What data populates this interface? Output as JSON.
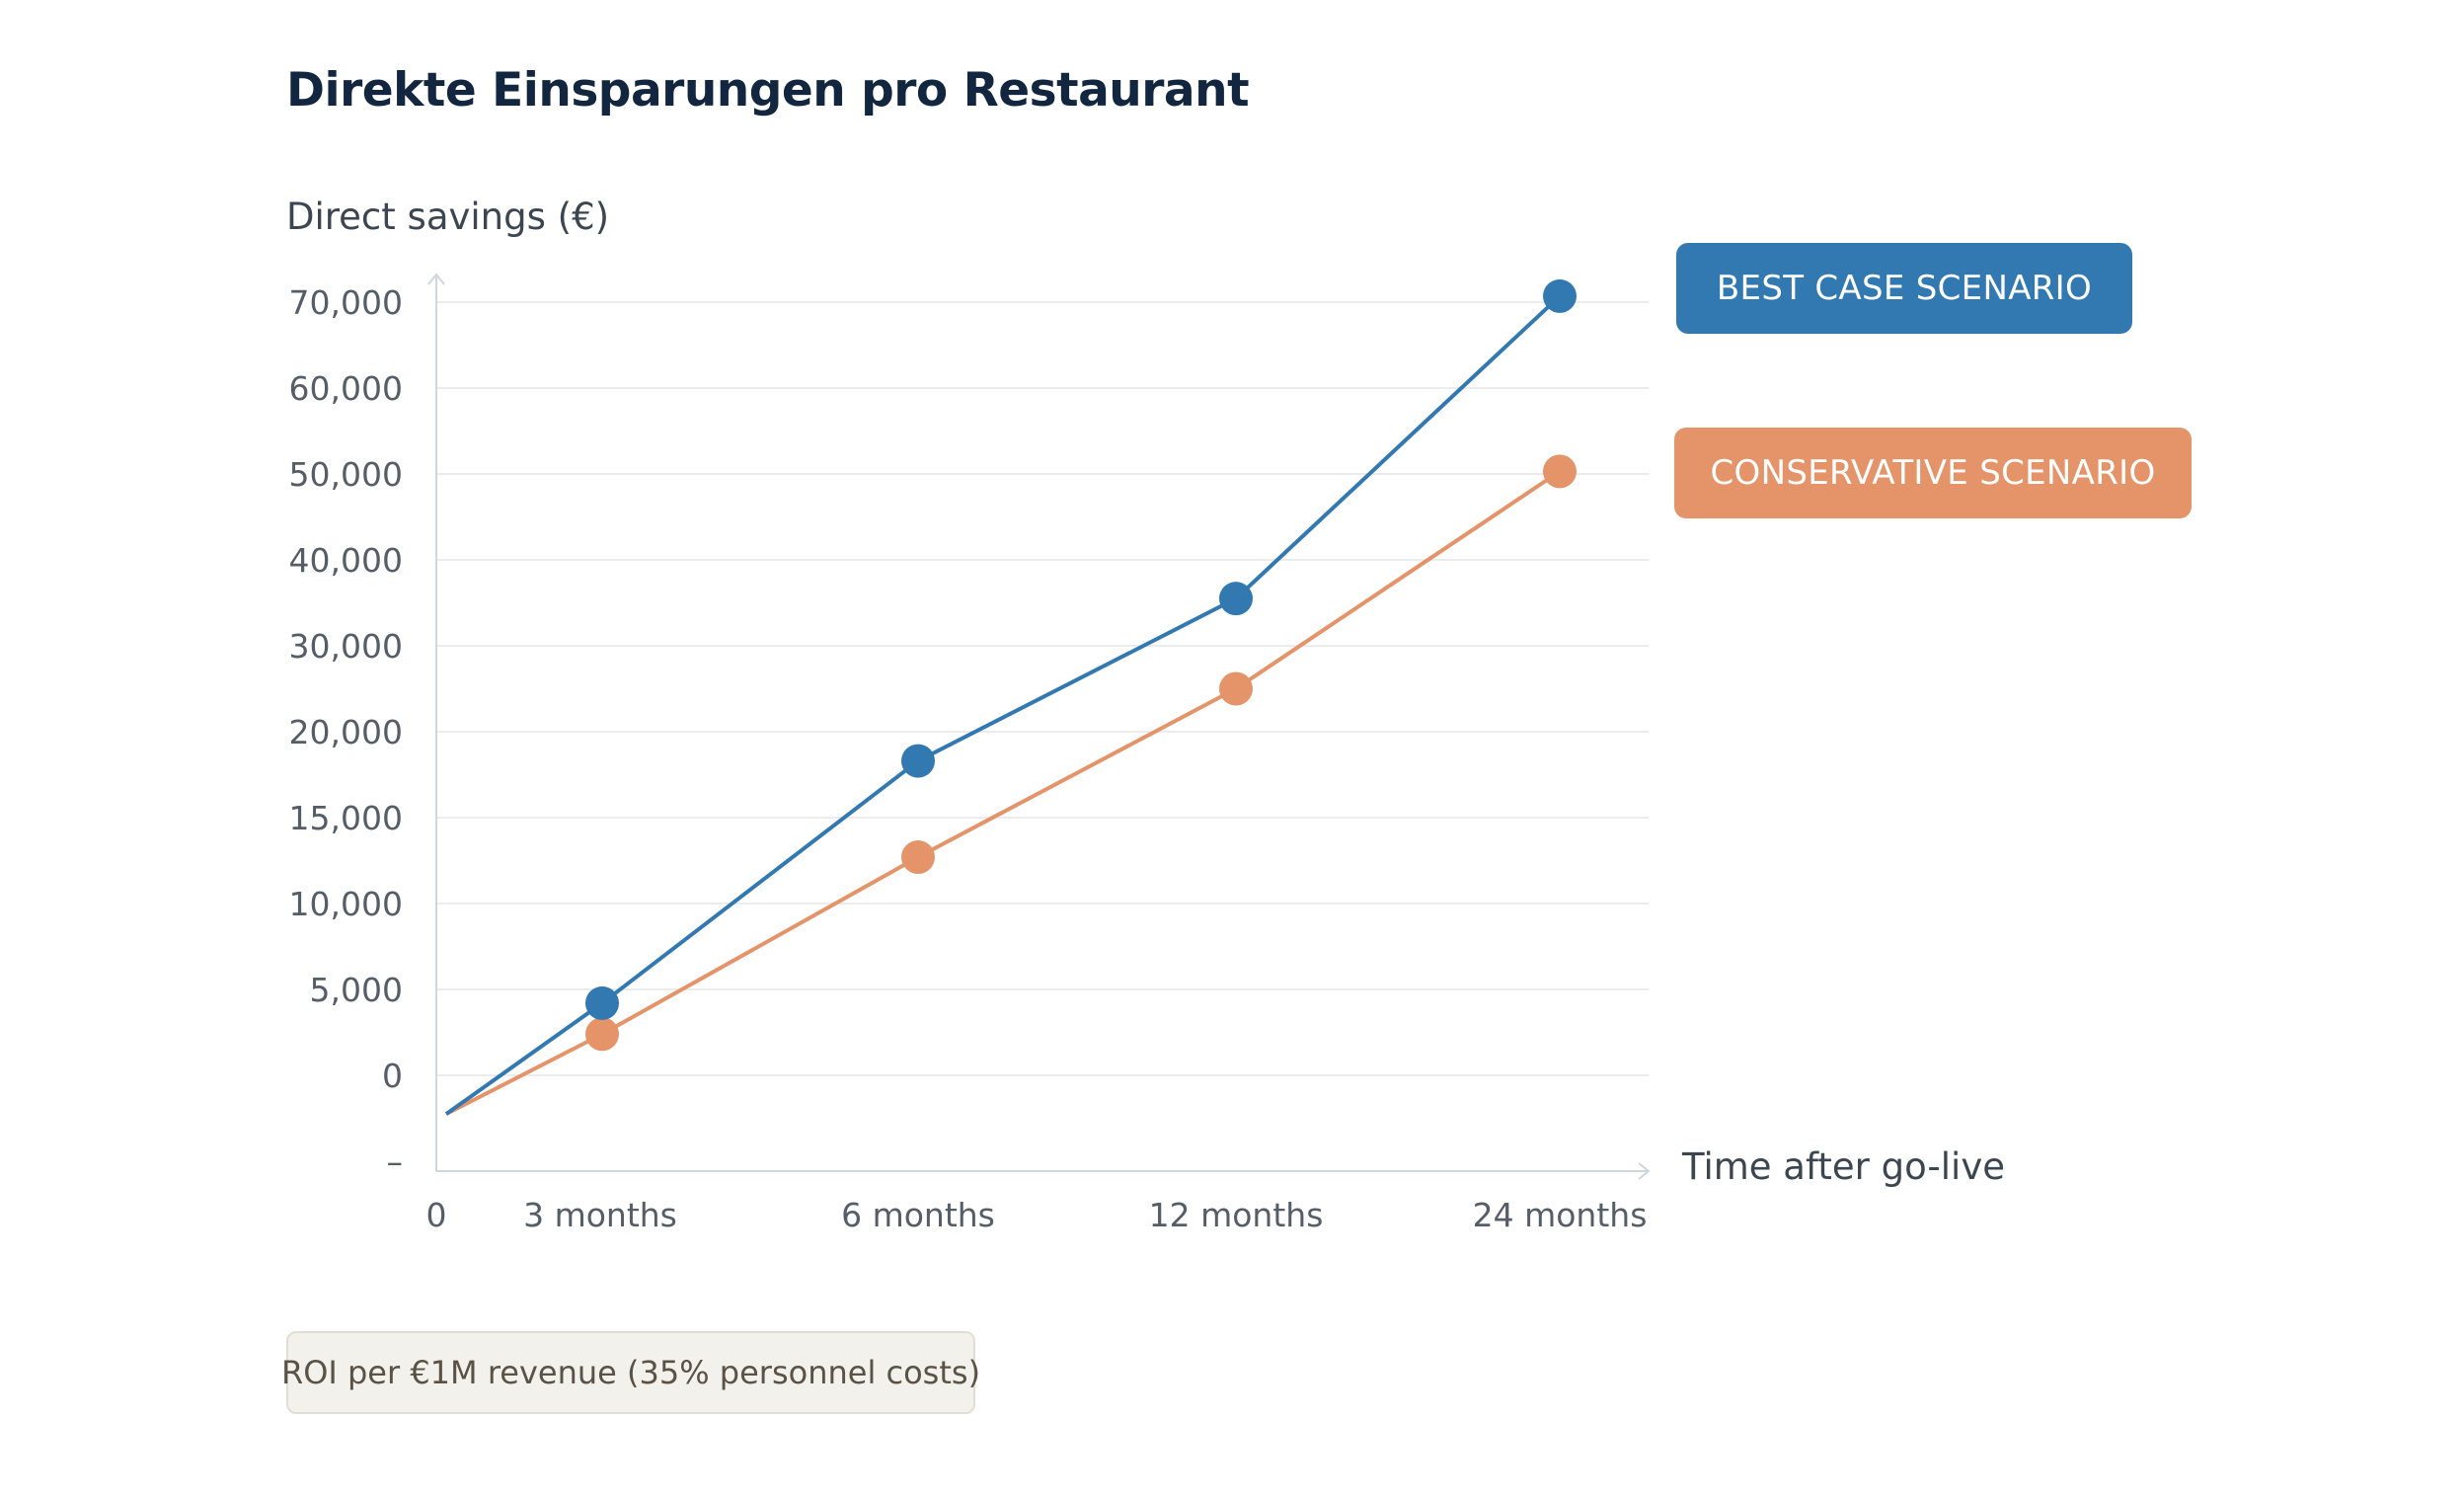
{
  "title": "Direkte Einsparungen pro Restaurant",
  "colors": {
    "best_case": "#3279b2",
    "conservative": "#e5946a",
    "grid": "#ececec",
    "axis": "#cfd6dc",
    "tick_text": "#555d66"
  },
  "chart_data": {
    "type": "line",
    "ylabel": "Direct savings (€)",
    "xlabel": "Time after go-live",
    "y_ticks": [
      "70,000",
      "60,000",
      "50,000",
      "40,000",
      "30,000",
      "20,000",
      "15,000",
      "10,000",
      "5,000",
      "0",
      "–"
    ],
    "x_ticks": [
      "0",
      "3 months",
      "6 months",
      "12 months",
      "24 months"
    ],
    "x": [
      "0",
      "3 months",
      "6 months",
      "12 months",
      "24 months"
    ],
    "y_scale": "categorical tick spacing (non-linear labels)",
    "grid": true,
    "legend_position": "right",
    "series": [
      {
        "name": "BEST CASE SCENARIO",
        "color": "#3279b2",
        "values": [
          -4500,
          4200,
          18300,
          35500,
          70700
        ]
      },
      {
        "name": "CONSERVATIVE SCENARIO",
        "color": "#e5946a",
        "values": [
          -4500,
          2400,
          12700,
          25000,
          50300
        ]
      }
    ]
  },
  "legend": {
    "best_label": "BEST CASE SCENARIO",
    "conservative_label": "CONSERVATIVE SCENARIO"
  },
  "note": "ROI per €1M revenue (35% personnel costs)"
}
